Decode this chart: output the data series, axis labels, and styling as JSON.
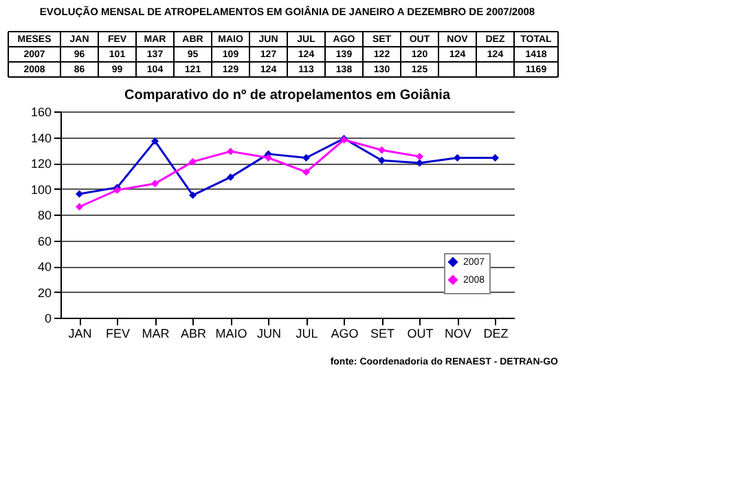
{
  "chart_data": {
    "type": "line",
    "title": "EVOLUÇÃO MENSAL DE ATROPELAMENTOS EM GOIÂNIA DE JANEIRO A DEZEMBRO DE 2007/2008",
    "subtitle": "Comparativo do nº de atropelamentos em Goiânia",
    "categories": [
      "JAN",
      "FEV",
      "MAR",
      "ABR",
      "MAIO",
      "JUN",
      "JUL",
      "AGO",
      "SET",
      "OUT",
      "NOV",
      "DEZ"
    ],
    "series": [
      {
        "name": "2007",
        "color": "#0000cc",
        "marker": "diamond",
        "values": [
          96,
          101,
          137,
          95,
          109,
          127,
          124,
          139,
          122,
          120,
          124,
          124
        ]
      },
      {
        "name": "2008",
        "color": "#ff00ff",
        "marker": "diamond",
        "values": [
          86,
          99,
          104,
          121,
          129,
          124,
          113,
          138,
          130,
          125,
          null,
          null
        ]
      }
    ],
    "ylim": [
      0,
      160
    ],
    "yticks": [
      0,
      20,
      40,
      60,
      80,
      100,
      120,
      140,
      160
    ],
    "grid": "y",
    "legend": "bottom right",
    "line_style": "solid",
    "data_labels": true,
    "annotations": [
      "MESES",
      "TOTAL",
      "1418",
      "1169",
      "fonte: Coordenadoria do RENAEST - DETRAN-GO"
    ]
  }
}
